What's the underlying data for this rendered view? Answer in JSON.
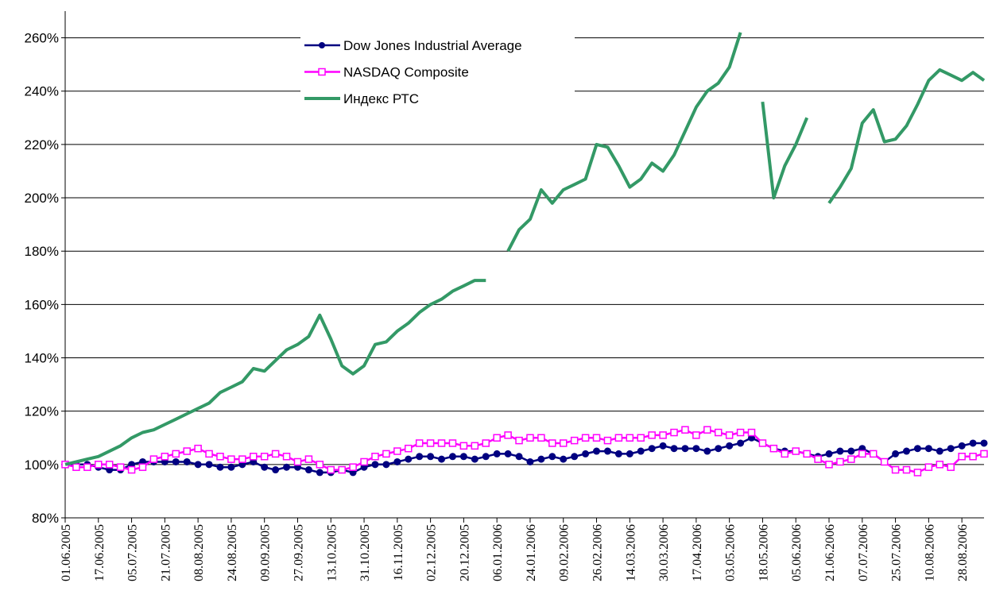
{
  "chart_data": {
    "type": "line",
    "categories": [
      "01.06.2005",
      null,
      null,
      "17.06.2005",
      null,
      null,
      "05.07.2005",
      null,
      null,
      "21.07.2005",
      null,
      null,
      "08.08.2005",
      null,
      null,
      "24.08.2005",
      null,
      null,
      "09.09.2005",
      null,
      null,
      "27.09.2005",
      null,
      null,
      "13.10.2005",
      null,
      null,
      "31.10.2005",
      null,
      null,
      "16.11.2005",
      null,
      null,
      "02.12.2005",
      null,
      null,
      "20.12.2005",
      null,
      null,
      "06.01.2006",
      null,
      null,
      "24.01.2006",
      null,
      null,
      "09.02.2006",
      null,
      null,
      "26.02.2006",
      null,
      null,
      "14.03.2006",
      null,
      null,
      "30.03.2006",
      null,
      null,
      "17.04.2006",
      null,
      null,
      "03.05.2006",
      null,
      null,
      "18.05.2006",
      null,
      null,
      "05.06.2006",
      null,
      null,
      "21.06.2006",
      null,
      null,
      "07.07.2006",
      null,
      null,
      "25.07.2006",
      null,
      null,
      "10.08.2006",
      null,
      null,
      "28.08.2006",
      null,
      null
    ],
    "series": [
      {
        "name": "Dow Jones Industrial Average",
        "color": "#000080",
        "marker": "circle",
        "values": [
          100,
          100,
          100,
          99,
          98,
          98,
          100,
          101,
          101,
          101,
          101,
          101,
          100,
          100,
          99,
          99,
          100,
          101,
          99,
          98,
          99,
          99,
          98,
          97,
          97,
          98,
          97,
          99,
          100,
          100,
          101,
          102,
          103,
          103,
          102,
          103,
          103,
          102,
          103,
          104,
          104,
          103,
          101,
          102,
          103,
          102,
          103,
          104,
          105,
          105,
          104,
          104,
          105,
          106,
          107,
          106,
          106,
          106,
          105,
          106,
          107,
          108,
          110,
          108,
          106,
          105,
          105,
          104,
          103,
          104,
          105,
          105,
          106,
          104,
          101,
          104,
          105,
          106,
          106,
          105,
          106,
          107,
          108,
          108
        ]
      },
      {
        "name": "NASDAQ Composite",
        "color": "#ff00ff",
        "marker": "square",
        "values": [
          100,
          99,
          99,
          100,
          100,
          99,
          98,
          99,
          102,
          103,
          104,
          105,
          106,
          104,
          103,
          102,
          102,
          103,
          103,
          104,
          103,
          101,
          102,
          100,
          98,
          98,
          99,
          101,
          103,
          104,
          105,
          106,
          108,
          108,
          108,
          108,
          107,
          107,
          108,
          110,
          111,
          109,
          110,
          110,
          108,
          108,
          109,
          110,
          110,
          109,
          110,
          110,
          110,
          111,
          111,
          112,
          113,
          111,
          113,
          112,
          111,
          112,
          112,
          108,
          106,
          104,
          105,
          104,
          102,
          100,
          101,
          102,
          104,
          104,
          101,
          98,
          98,
          97,
          99,
          100,
          99,
          103,
          103,
          104
        ]
      },
      {
        "name": "Индекс РТС",
        "color": "#339966",
        "marker": "none",
        "values": [
          100,
          101,
          102,
          103,
          105,
          107,
          110,
          112,
          113,
          115,
          117,
          119,
          121,
          123,
          127,
          129,
          131,
          136,
          135,
          139,
          143,
          145,
          148,
          156,
          147,
          137,
          134,
          137,
          145,
          146,
          150,
          153,
          157,
          160,
          162,
          165,
          167,
          169,
          169,
          null,
          180,
          188,
          192,
          203,
          198,
          203,
          205,
          207,
          220,
          219,
          212,
          204,
          207,
          213,
          210,
          216,
          225,
          234,
          240,
          243,
          249,
          262,
          null,
          236,
          200,
          212,
          220,
          230,
          null,
          198,
          204,
          211,
          228,
          233,
          221,
          222,
          227,
          235,
          244,
          248,
          246,
          244,
          247,
          244
        ]
      }
    ],
    "ylim": [
      80,
      270
    ],
    "yticks": [
      {
        "value": 80,
        "label": "80%"
      },
      {
        "value": 100,
        "label": "100%"
      },
      {
        "value": 120,
        "label": "120%"
      },
      {
        "value": 140,
        "label": "140%"
      },
      {
        "value": 160,
        "label": "160%"
      },
      {
        "value": 180,
        "label": "180%"
      },
      {
        "value": 200,
        "label": "200%"
      },
      {
        "value": 220,
        "label": "220%"
      },
      {
        "value": 240,
        "label": "240%"
      },
      {
        "value": 260,
        "label": "260%"
      }
    ],
    "grid": true,
    "legend": "top"
  }
}
